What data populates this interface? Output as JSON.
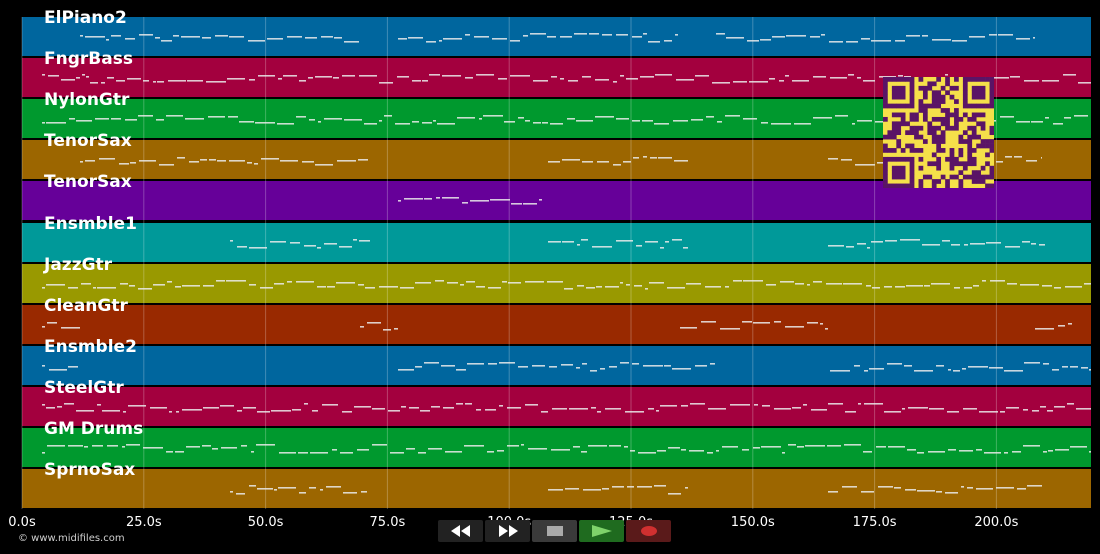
{
  "tracks": [
    {
      "name": "ElPiano2",
      "color": "#00669e"
    },
    {
      "name": "FngrBass",
      "color": "#a3003e"
    },
    {
      "name": "NylonGtr",
      "color": "#00992e"
    },
    {
      "name": "TenorSax",
      "color": "#9c6600"
    },
    {
      "name": "TenorSax",
      "color": "#660099"
    },
    {
      "name": "Ensmble1",
      "color": "#009999"
    },
    {
      "name": "JazzGtr",
      "color": "#999900"
    },
    {
      "name": "CleanGtr",
      "color": "#992900"
    },
    {
      "name": "Ensmble2",
      "color": "#00669e"
    },
    {
      "name": "SteelGtr",
      "color": "#a3003e"
    },
    {
      "name": "GM Drums",
      "color": "#00992e"
    },
    {
      "name": "SprnoSax",
      "color": "#9c6600"
    }
  ],
  "axis": {
    "ticks": [
      "0.0s",
      "25.0s",
      "50.0s",
      "75.0s",
      "100.0s",
      "125.0s",
      "150.0s",
      "175.0s",
      "200.0s"
    ]
  },
  "copyright": "© www.midifiles.com",
  "controls": [
    {
      "name": "rewind",
      "icon": "rewind-icon",
      "bg": "#222222"
    },
    {
      "name": "fast-forward",
      "icon": "fast-forward-icon",
      "bg": "#222222"
    },
    {
      "name": "stop",
      "icon": "stop-icon",
      "bg": "#3a3a3a"
    },
    {
      "name": "play",
      "icon": "play-icon",
      "bg": "#1f6b1f"
    },
    {
      "name": "record",
      "icon": "record-icon",
      "bg": "#5a1a1a"
    }
  ],
  "qr": {
    "icon": "qr-code-icon",
    "fg": "#5a1466",
    "bg": "#f5e04a"
  }
}
